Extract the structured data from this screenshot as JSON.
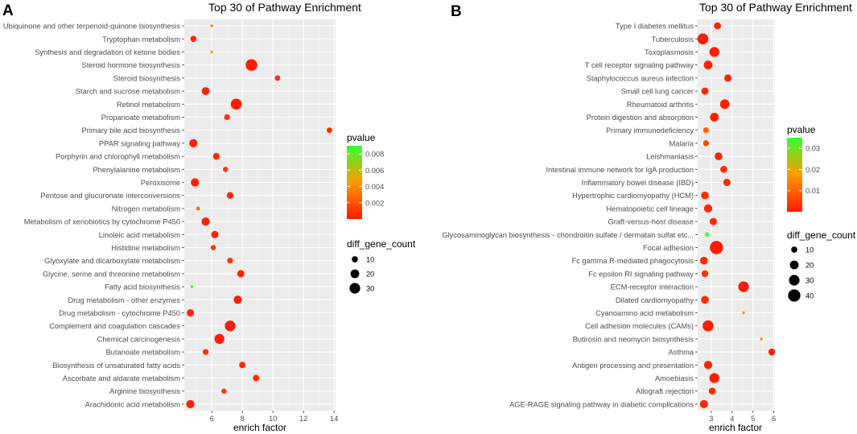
{
  "colors": {
    "panel_bg": "#ebebeb",
    "grid_major": "#ffffff",
    "grid_minor": "#f5f5f5",
    "low_pvalue": "#ff1a00",
    "high_pvalue": "#33ff33",
    "mid_pvalue": "#ff9900",
    "axis_text": "#4d4d4d"
  },
  "panel_labels": [
    "A",
    "B"
  ],
  "chart_data": [
    {
      "type": "scatter",
      "panel": "A",
      "title": "Top 30 of Pathway Enrichment",
      "xlabel": "enrich factor",
      "ylabel": "",
      "xlim": [
        4.2,
        14.1
      ],
      "xticks": [
        6,
        8,
        10,
        12,
        14
      ],
      "grid": true,
      "legend_position": "right",
      "pvalue_legend": {
        "title": "pvalue",
        "min": 0,
        "max": 0.009,
        "ticks": [
          0.002,
          0.004,
          0.006,
          0.008
        ],
        "tick_labels": [
          "0.002",
          "0.004",
          "0.006",
          "0.008"
        ]
      },
      "count_legend": {
        "title": "diff_gene_count",
        "values": [
          10,
          20,
          30
        ],
        "labels": [
          "10",
          "20",
          "30"
        ]
      },
      "points": [
        {
          "pathway": "Ubiquinone and other terpenoid-quinone biosynthesis",
          "x": 6.0,
          "count": 2,
          "pvalue": 0.004
        },
        {
          "pathway": "Tryptophan metabolism",
          "x": 4.8,
          "count": 10,
          "pvalue": 0.0006
        },
        {
          "pathway": "Synthesis and degradation of ketone bodies",
          "x": 6.0,
          "count": 2,
          "pvalue": 0.0045
        },
        {
          "pathway": "Steroid hormone biosynthesis",
          "x": 8.6,
          "count": 36,
          "pvalue": 0.0001
        },
        {
          "pathway": "Steroid biosynthesis",
          "x": 10.3,
          "count": 8,
          "pvalue": 0.0008
        },
        {
          "pathway": "Starch and sucrose metabolism",
          "x": 5.6,
          "count": 16,
          "pvalue": 0.0003
        },
        {
          "pathway": "Retinol metabolism",
          "x": 7.6,
          "count": 32,
          "pvalue": 0.0001
        },
        {
          "pathway": "Propanoate metabolism",
          "x": 7.0,
          "count": 9,
          "pvalue": 0.0009
        },
        {
          "pathway": "Primary bile acid biosynthesis",
          "x": 13.7,
          "count": 8,
          "pvalue": 0.0006
        },
        {
          "pathway": "PPAR signaling pathway",
          "x": 4.8,
          "count": 18,
          "pvalue": 0.0002
        },
        {
          "pathway": "Porphyrin and chlorophyll metabolism",
          "x": 6.3,
          "count": 12,
          "pvalue": 0.0005
        },
        {
          "pathway": "Phenylalanine metabolism",
          "x": 6.9,
          "count": 7,
          "pvalue": 0.001
        },
        {
          "pathway": "Peroxisome",
          "x": 4.9,
          "count": 18,
          "pvalue": 0.0002
        },
        {
          "pathway": "Pentose and glucuronate interconversions",
          "x": 7.2,
          "count": 12,
          "pvalue": 0.0005
        },
        {
          "pathway": "Nitrogen metabolism",
          "x": 5.1,
          "count": 4,
          "pvalue": 0.003
        },
        {
          "pathway": "Metabolism of xenobiotics by cytochrome P450",
          "x": 5.6,
          "count": 18,
          "pvalue": 0.0002
        },
        {
          "pathway": "Linoleic acid metabolism",
          "x": 6.2,
          "count": 14,
          "pvalue": 0.0004
        },
        {
          "pathway": "Histidine metabolism",
          "x": 6.1,
          "count": 7,
          "pvalue": 0.001
        },
        {
          "pathway": "Glyoxylate and dicarboxylate metabolism",
          "x": 7.2,
          "count": 9,
          "pvalue": 0.0008
        },
        {
          "pathway": "Glycine, serine and threonine metabolism",
          "x": 7.9,
          "count": 14,
          "pvalue": 0.0004
        },
        {
          "pathway": "Fatty acid biosynthesis",
          "x": 4.7,
          "count": 2,
          "pvalue": 0.0088
        },
        {
          "pathway": "Drug metabolism - other enzymes",
          "x": 7.7,
          "count": 18,
          "pvalue": 0.0002
        },
        {
          "pathway": "Drug metabolism - cytochrome P450",
          "x": 4.6,
          "count": 14,
          "pvalue": 0.0004
        },
        {
          "pathway": "Complement and coagulation cascades",
          "x": 7.2,
          "count": 30,
          "pvalue": 0.0001
        },
        {
          "pathway": "Chemical carcinogenesis",
          "x": 6.5,
          "count": 26,
          "pvalue": 0.0001
        },
        {
          "pathway": "Butanoate metabolism",
          "x": 5.6,
          "count": 9,
          "pvalue": 0.0008
        },
        {
          "pathway": "Biosynthesis of unsaturated fatty acids",
          "x": 8.0,
          "count": 11,
          "pvalue": 0.0006
        },
        {
          "pathway": "Ascorbate and aldarate metabolism",
          "x": 8.9,
          "count": 11,
          "pvalue": 0.0006
        },
        {
          "pathway": "Arginine biosynthesis",
          "x": 6.8,
          "count": 7,
          "pvalue": 0.001
        },
        {
          "pathway": "Arachidonic acid metabolism",
          "x": 4.6,
          "count": 18,
          "pvalue": 0.0002
        }
      ]
    },
    {
      "type": "scatter",
      "panel": "B",
      "title": "Top 30 of Pathway Enrichment",
      "xlabel": "enrich factor",
      "ylabel": "",
      "xlim": [
        2.35,
        6.05
      ],
      "xticks": [
        3,
        4,
        5,
        6
      ],
      "grid": true,
      "legend_position": "right",
      "pvalue_legend": {
        "title": "pvalue",
        "min": 0,
        "max": 0.035,
        "ticks": [
          0.01,
          0.02,
          0.03
        ],
        "tick_labels": [
          "0.01",
          "0.02",
          "0.03"
        ]
      },
      "count_legend": {
        "title": "diff_gene_count",
        "values": [
          10,
          20,
          30,
          40
        ],
        "labels": [
          "10",
          "20",
          "30",
          "40"
        ]
      },
      "points": [
        {
          "pathway": "Type I diabetes mellitus",
          "x": 3.3,
          "count": 13,
          "pvalue": 0.001
        },
        {
          "pathway": "Tuberculosis",
          "x": 2.6,
          "count": 32,
          "pvalue": 0.0003
        },
        {
          "pathway": "Toxoplasmosis",
          "x": 3.15,
          "count": 26,
          "pvalue": 0.0005
        },
        {
          "pathway": "T cell receptor signaling pathway",
          "x": 2.85,
          "count": 20,
          "pvalue": 0.001
        },
        {
          "pathway": "Staphylococcus aureus infection",
          "x": 3.8,
          "count": 14,
          "pvalue": 0.001
        },
        {
          "pathway": "Small cell lung cancer",
          "x": 2.7,
          "count": 14,
          "pvalue": 0.0015
        },
        {
          "pathway": "Rheumatoid arthritis",
          "x": 3.65,
          "count": 24,
          "pvalue": 0.0005
        },
        {
          "pathway": "Protein digestion and absorption",
          "x": 3.15,
          "count": 20,
          "pvalue": 0.001
        },
        {
          "pathway": "Primary immunodeficiency",
          "x": 2.75,
          "count": 9,
          "pvalue": 0.01
        },
        {
          "pathway": "Malaria",
          "x": 2.75,
          "count": 9,
          "pvalue": 0.006
        },
        {
          "pathway": "Leishmaniasis",
          "x": 3.35,
          "count": 16,
          "pvalue": 0.0015
        },
        {
          "pathway": "Intestinal immune network for IgA production",
          "x": 3.6,
          "count": 13,
          "pvalue": 0.002
        },
        {
          "pathway": "Inflammatory bowel disease (IBD)",
          "x": 3.75,
          "count": 14,
          "pvalue": 0.0018
        },
        {
          "pathway": "Hypertrophic cardiomyopathy (HCM)",
          "x": 2.7,
          "count": 16,
          "pvalue": 0.0025
        },
        {
          "pathway": "Hematopoietic cell lineage",
          "x": 2.85,
          "count": 18,
          "pvalue": 0.002
        },
        {
          "pathway": "Graft-versus-host disease",
          "x": 3.1,
          "count": 14,
          "pvalue": 0.002
        },
        {
          "pathway": "Glycosaminoglycan biosynthesis - chondroitin sulfate / dermatan sulfat etc...",
          "x": 2.8,
          "count": 5,
          "pvalue": 0.034
        },
        {
          "pathway": "Focal adhesion",
          "x": 3.25,
          "count": 46,
          "pvalue": 0.0002
        },
        {
          "pathway": "Fc gamma R-mediated phagocytosis",
          "x": 2.65,
          "count": 16,
          "pvalue": 0.002
        },
        {
          "pathway": "Fc epsilon RI signaling pathway",
          "x": 2.7,
          "count": 12,
          "pvalue": 0.003
        },
        {
          "pathway": "ECM-receptor interaction",
          "x": 4.55,
          "count": 30,
          "pvalue": 0.0003
        },
        {
          "pathway": "Dilated cardiomyopathy",
          "x": 2.7,
          "count": 16,
          "pvalue": 0.002
        },
        {
          "pathway": "Cyanoamino acid metabolism",
          "x": 4.55,
          "count": 2,
          "pvalue": 0.02
        },
        {
          "pathway": "Cell adhesion molecules (CAMs)",
          "x": 2.85,
          "count": 32,
          "pvalue": 0.0003
        },
        {
          "pathway": "Butirosin and neomycin biosynthesis",
          "x": 5.4,
          "count": 2,
          "pvalue": 0.015
        },
        {
          "pathway": "Asthma",
          "x": 5.9,
          "count": 12,
          "pvalue": 0.0005
        },
        {
          "pathway": "Antigen processing and presentation",
          "x": 2.85,
          "count": 18,
          "pvalue": 0.0015
        },
        {
          "pathway": "Amoebiasis",
          "x": 3.15,
          "count": 26,
          "pvalue": 0.0005
        },
        {
          "pathway": "Allograft rejection",
          "x": 3.05,
          "count": 13,
          "pvalue": 0.0025
        },
        {
          "pathway": "AGE-RAGE signaling pathway in diabetic complications",
          "x": 2.65,
          "count": 18,
          "pvalue": 0.002
        }
      ]
    }
  ]
}
